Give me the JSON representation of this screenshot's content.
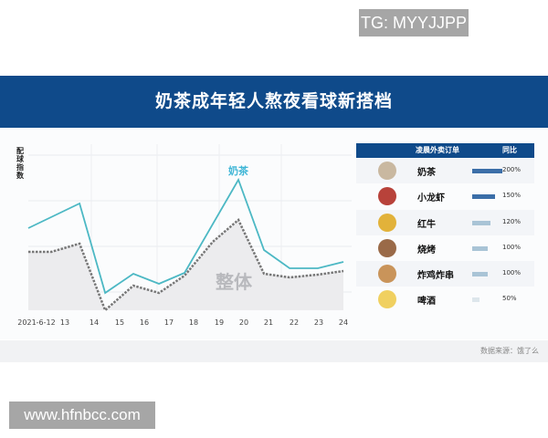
{
  "watermark_top": "TG: MYYJJPP",
  "watermark_bottom": "www.hfnbcc.com",
  "header": {
    "title": "奶茶成年轻人熬夜看球新搭档"
  },
  "footer": {
    "source": "数据来源：饿了么"
  },
  "chart_data": {
    "type": "line",
    "ylabel": "配球指数",
    "x_ticks": [
      "2021-6-12",
      "13",
      "14",
      "15",
      "16",
      "17",
      "18",
      "19",
      "20",
      "21",
      "22",
      "23",
      "24"
    ],
    "grid": true,
    "series": [
      {
        "name": "奶茶",
        "color": "#4cb8c4",
        "style": "solid",
        "x": [
          11.7,
          13.7,
          14.7,
          15.8,
          16.8,
          17.8,
          19.9,
          20.9,
          21.9,
          23,
          24
        ],
        "values": [
          90,
          117,
          19,
          40,
          29,
          41,
          143,
          66,
          46,
          46,
          53
        ]
      },
      {
        "name": "整体",
        "color": "#777777",
        "style": "dashed",
        "fill": "#ececee",
        "x": [
          11.7,
          12.6,
          13.7,
          14.7,
          15.8,
          16.8,
          17.8,
          18.9,
          19.9,
          20.9,
          21.9,
          23,
          24
        ],
        "values": [
          64,
          64,
          73,
          0,
          27,
          19,
          38,
          75,
          99,
          40,
          36,
          39,
          43
        ]
      }
    ]
  },
  "table": {
    "headers": [
      "凌晨外卖订单",
      "同比"
    ],
    "rows": [
      {
        "name": "奶茶",
        "value": 200,
        "label": "200%",
        "color": "#3b6ea8",
        "thumb": "#c9b8a0"
      },
      {
        "name": "小龙虾",
        "value": 150,
        "label": "150%",
        "color": "#3b6ea8",
        "thumb": "#b8423a"
      },
      {
        "name": "红牛",
        "value": 120,
        "label": "120%",
        "color": "#a9c4d6",
        "thumb": "#e2b23a"
      },
      {
        "name": "烧烤",
        "value": 100,
        "label": "100%",
        "color": "#a9c4d6",
        "thumb": "#9a6a48"
      },
      {
        "name": "炸鸡炸串",
        "value": 100,
        "label": "100%",
        "color": "#a9c4d6",
        "thumb": "#c9945a"
      },
      {
        "name": "啤酒",
        "value": 50,
        "label": "50%",
        "color": "#dde6ec",
        "thumb": "#f0d060"
      }
    ]
  }
}
